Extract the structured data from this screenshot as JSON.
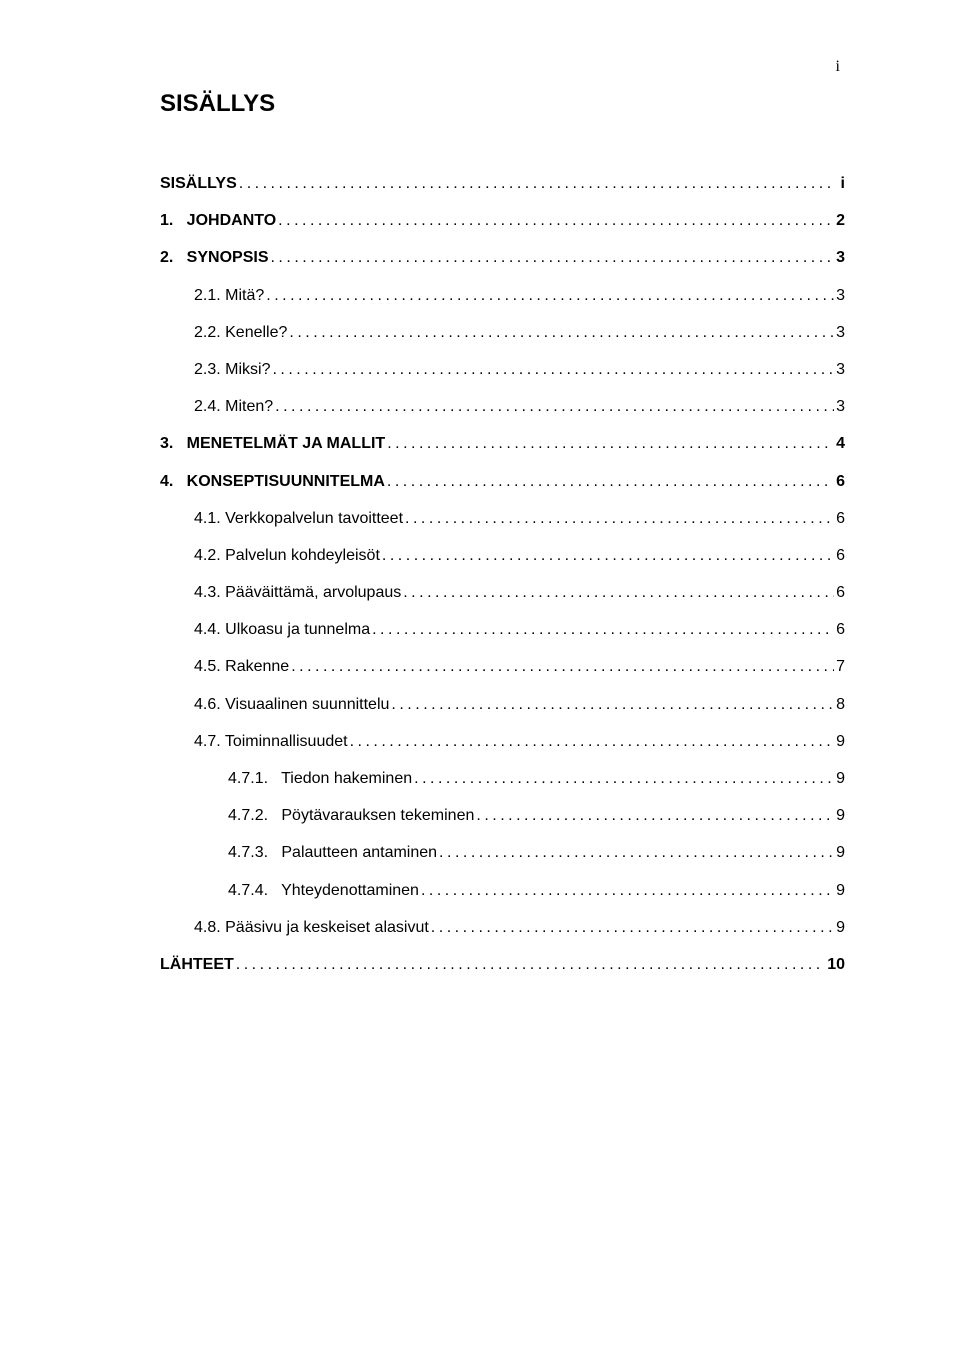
{
  "page_number_top": "i",
  "title": "SISÄLLYS",
  "toc": [
    {
      "label": "SISÄLLYS",
      "page": " i",
      "level": 0,
      "bold": true
    },
    {
      "label": "1.   JOHDANTO",
      "page": " 2",
      "level": 0,
      "bold": true
    },
    {
      "label": "2.   SYNOPSIS",
      "page": " 3",
      "level": 0,
      "bold": true
    },
    {
      "label": "2.1. Mitä?",
      "page": "3",
      "level": 1,
      "bold": false
    },
    {
      "label": "2.2. Kenelle?",
      "page": "3",
      "level": 1,
      "bold": false
    },
    {
      "label": "2.3. Miksi?",
      "page": "3",
      "level": 1,
      "bold": false
    },
    {
      "label": "2.4. Miten?",
      "page": "3",
      "level": 1,
      "bold": false
    },
    {
      "label": "3.   MENETELMÄT JA MALLIT",
      "page": " 4",
      "level": 0,
      "bold": true
    },
    {
      "label": "4.   KONSEPTISUUNNITELMA",
      "page": " 6",
      "level": 0,
      "bold": true
    },
    {
      "label": "4.1. Verkkopalvelun tavoitteet",
      "page": "6",
      "level": 1,
      "bold": false
    },
    {
      "label": "4.2. Palvelun kohdeyleisöt",
      "page": "6",
      "level": 1,
      "bold": false
    },
    {
      "label": "4.3. Pääväittämä, arvolupaus",
      "page": "6",
      "level": 1,
      "bold": false
    },
    {
      "label": "4.4. Ulkoasu ja tunnelma",
      "page": "6",
      "level": 1,
      "bold": false
    },
    {
      "label": "4.5. Rakenne",
      "page": "7",
      "level": 1,
      "bold": false
    },
    {
      "label": "4.6. Visuaalinen suunnittelu",
      "page": "8",
      "level": 1,
      "bold": false
    },
    {
      "label": "4.7. Toiminnallisuudet",
      "page": "9",
      "level": 1,
      "bold": false
    },
    {
      "label": "4.7.1.   Tiedon hakeminen",
      "page": "9",
      "level": 2,
      "bold": false
    },
    {
      "label": "4.7.2.   Pöytävarauksen tekeminen",
      "page": "9",
      "level": 2,
      "bold": false
    },
    {
      "label": "4.7.3.   Palautteen antaminen",
      "page": "9",
      "level": 2,
      "bold": false
    },
    {
      "label": "4.7.4.   Yhteydenottaminen",
      "page": "9",
      "level": 2,
      "bold": false
    },
    {
      "label": "4.8. Pääsivu ja keskeiset alasivut",
      "page": "9",
      "level": 1,
      "bold": false
    },
    {
      "label": "LÄHTEET",
      "page": " 10",
      "level": 0,
      "bold": true
    }
  ]
}
